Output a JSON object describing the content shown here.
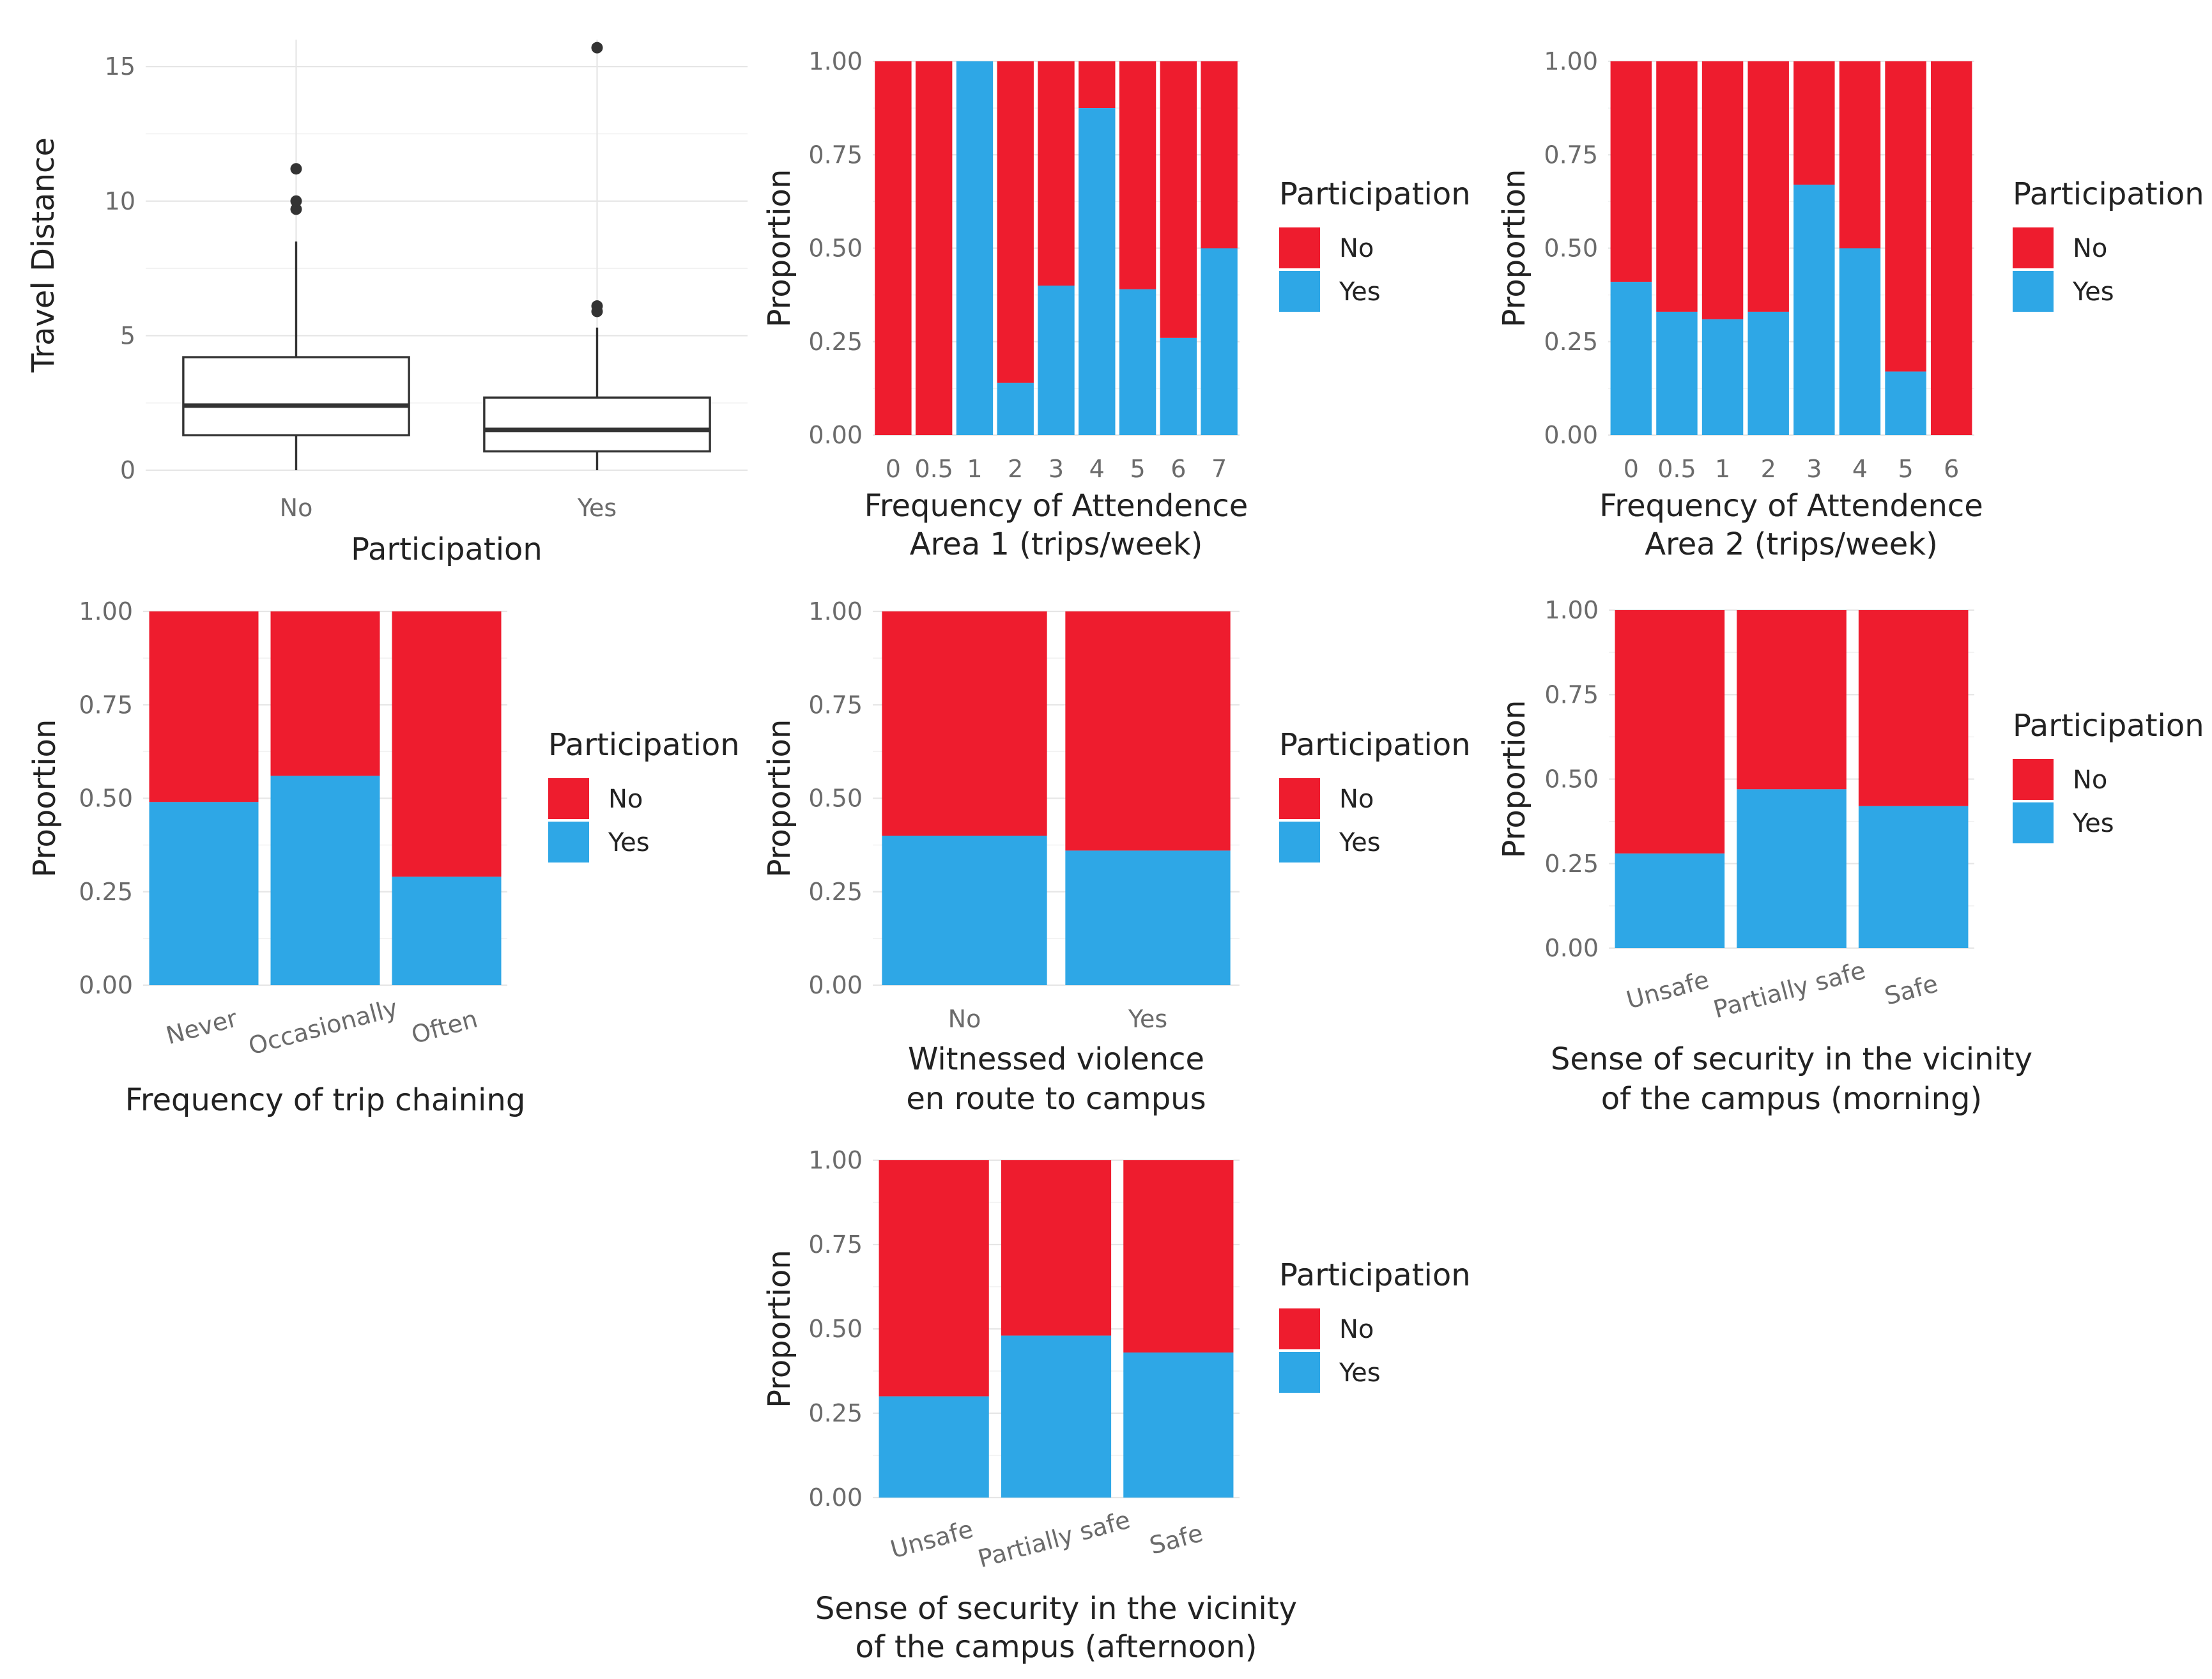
{
  "colors": {
    "no": "#ee1c2e",
    "yes": "#2ea7e6",
    "box": "#333333"
  },
  "chart_data": [
    {
      "id": "travel-distance",
      "type": "boxplot",
      "xlabel": "Participation",
      "ylabel": "Travel Distance",
      "ylim": [
        0,
        16
      ],
      "yticks": [
        0,
        5,
        10,
        15
      ],
      "categories": [
        "No",
        "Yes"
      ],
      "boxes": [
        {
          "category": "No",
          "min": 0,
          "q1": 1.3,
          "median": 2.4,
          "q3": 4.2,
          "max": 8.5,
          "outliers": [
            9.7,
            10.0,
            11.2
          ]
        },
        {
          "category": "Yes",
          "min": 0,
          "q1": 0.7,
          "median": 1.5,
          "q3": 2.7,
          "max": 5.3,
          "outliers": [
            5.9,
            6.1,
            15.7
          ]
        }
      ]
    },
    {
      "id": "attendance-area1",
      "type": "bar",
      "stacked": true,
      "xlabel": [
        "Frequency of Attendence",
        "Area 1 (trips/week)"
      ],
      "ylabel": "Proportion",
      "ylim": [
        0,
        1
      ],
      "yticks": [
        "0.00",
        "0.25",
        "0.50",
        "0.75",
        "1.00"
      ],
      "categories": [
        "0",
        "0.5",
        "1",
        "2",
        "3",
        "4",
        "5",
        "6",
        "7"
      ],
      "yes": [
        0,
        0,
        1.0,
        0.14,
        0.4,
        0.875,
        0.39,
        0.26,
        0.5
      ],
      "legend": {
        "title": "Participation",
        "items": [
          "No",
          "Yes"
        ]
      }
    },
    {
      "id": "attendance-area2",
      "type": "bar",
      "stacked": true,
      "xlabel": [
        "Frequency of Attendence",
        "Area 2 (trips/week)"
      ],
      "ylabel": "Proportion",
      "ylim": [
        0,
        1
      ],
      "yticks": [
        "0.00",
        "0.25",
        "0.50",
        "0.75",
        "1.00"
      ],
      "categories": [
        "0",
        "0.5",
        "1",
        "2",
        "3",
        "4",
        "5",
        "6"
      ],
      "yes": [
        0.41,
        0.33,
        0.31,
        0.33,
        0.67,
        0.5,
        0.17,
        0
      ],
      "legend": {
        "title": "Participation",
        "items": [
          "No",
          "Yes"
        ]
      }
    },
    {
      "id": "trip-chaining",
      "type": "bar",
      "stacked": true,
      "xlabel": [
        "Frequency of trip chaining"
      ],
      "ylabel": "Proportion",
      "ylim": [
        0,
        1
      ],
      "yticks": [
        "0.00",
        "0.25",
        "0.50",
        "0.75",
        "1.00"
      ],
      "categories": [
        "Never",
        "Occasionally",
        "Often"
      ],
      "rotate": true,
      "yes": [
        0.49,
        0.56,
        0.29
      ],
      "legend": {
        "title": "Participation",
        "items": [
          "No",
          "Yes"
        ]
      }
    },
    {
      "id": "witnessed-violence",
      "type": "bar",
      "stacked": true,
      "xlabel": [
        "Witnessed violence",
        "en route to campus"
      ],
      "ylabel": "Proportion",
      "ylim": [
        0,
        1
      ],
      "yticks": [
        "0.00",
        "0.25",
        "0.50",
        "0.75",
        "1.00"
      ],
      "categories": [
        "No",
        "Yes"
      ],
      "yes": [
        0.4,
        0.36
      ],
      "legend": {
        "title": "Participation",
        "items": [
          "No",
          "Yes"
        ]
      }
    },
    {
      "id": "security-morning",
      "type": "bar",
      "stacked": true,
      "xlabel": [
        "Sense of security in the vicinity",
        "of the campus (morning)"
      ],
      "ylabel": "Proportion",
      "ylim": [
        0,
        1
      ],
      "yticks": [
        "0.00",
        "0.25",
        "0.50",
        "0.75",
        "1.00"
      ],
      "categories": [
        "Unsafe",
        "Partially safe",
        "Safe"
      ],
      "rotate": true,
      "yes": [
        0.28,
        0.47,
        0.42
      ],
      "legend": {
        "title": "Participation",
        "items": [
          "No",
          "Yes"
        ]
      }
    },
    {
      "id": "security-afternoon",
      "type": "bar",
      "stacked": true,
      "xlabel": [
        "Sense of security in the vicinity",
        "of the campus (afternoon)"
      ],
      "ylabel": "Proportion",
      "ylim": [
        0,
        1
      ],
      "yticks": [
        "0.00",
        "0.25",
        "0.50",
        "0.75",
        "1.00"
      ],
      "categories": [
        "Unsafe",
        "Partially safe",
        "Safe"
      ],
      "rotate": true,
      "yes": [
        0.3,
        0.48,
        0.43
      ],
      "legend": {
        "title": "Participation",
        "items": [
          "No",
          "Yes"
        ]
      }
    }
  ]
}
